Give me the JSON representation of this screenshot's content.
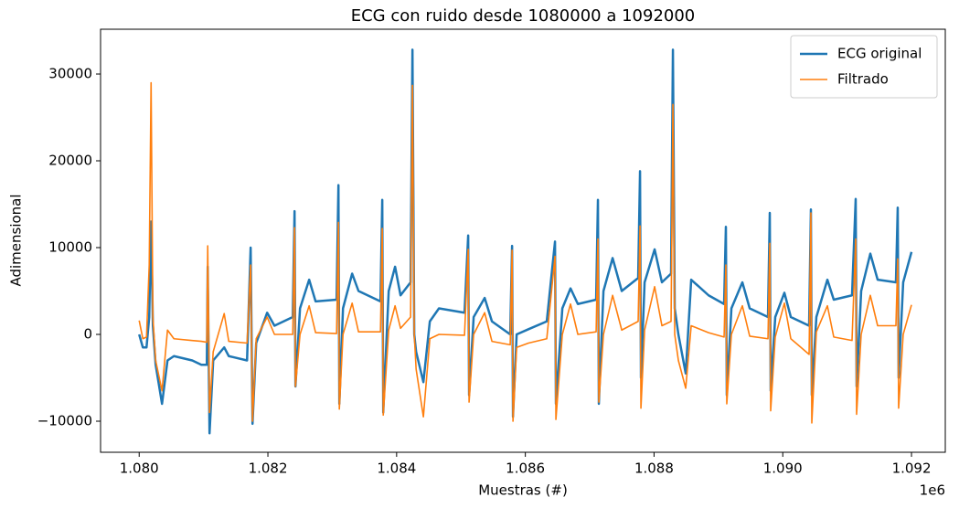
{
  "chart_data": {
    "type": "line",
    "title": "ECG con ruido desde 1080000 a 1092000",
    "xlabel": "Muestras (#)",
    "ylabel": "Adimensional",
    "x_offset_label": "1e6",
    "legend": "upper right",
    "grid": false,
    "xlim": [
      1079400,
      1092525
    ],
    "ylim": [
      -13580,
      35160
    ],
    "xticks": [
      {
        "value": 1080000,
        "label": "1.080"
      },
      {
        "value": 1082000,
        "label": "1.082"
      },
      {
        "value": 1084000,
        "label": "1.084"
      },
      {
        "value": 1086000,
        "label": "1.086"
      },
      {
        "value": 1088000,
        "label": "1.088"
      },
      {
        "value": 1090000,
        "label": "1.090"
      },
      {
        "value": 1092000,
        "label": "1.092"
      }
    ],
    "yticks": [
      {
        "value": -10000,
        "label": "−10000"
      },
      0,
      10000,
      20000,
      30000
    ],
    "x": [
      1080000,
      1080057,
      1080114,
      1080156,
      1080185,
      1080213,
      1080256,
      1080355,
      1080440,
      1080540,
      1080824,
      1080966,
      1081051,
      1081065,
      1081093,
      1081150,
      1081321,
      1081392,
      1081676,
      1081732,
      1081761,
      1081818,
      1081988,
      1082102,
      1082386,
      1082414,
      1082428,
      1082499,
      1082641,
      1082741,
      1083067,
      1083096,
      1083110,
      1083167,
      1083309,
      1083408,
      1083749,
      1083777,
      1083792,
      1083877,
      1083976,
      1084061,
      1084217,
      1084246,
      1084274,
      1084303,
      1084416,
      1084516,
      1084658,
      1085055,
      1085112,
      1085126,
      1085197,
      1085368,
      1085481,
      1085765,
      1085794,
      1085808,
      1085865,
      1086049,
      1086333,
      1086461,
      1086475,
      1086575,
      1086702,
      1086816,
      1087100,
      1087128,
      1087142,
      1087214,
      1087356,
      1087498,
      1087753,
      1087782,
      1087796,
      1087853,
      1088009,
      1088122,
      1088264,
      1088293,
      1088321,
      1088378,
      1088492,
      1088577,
      1088847,
      1089088,
      1089116,
      1089130,
      1089202,
      1089372,
      1089486,
      1089770,
      1089798,
      1089812,
      1089883,
      1090025,
      1090125,
      1090409,
      1090437,
      1090451,
      1090522,
      1090693,
      1090792,
      1091076,
      1091133,
      1091147,
      1091218,
      1091360,
      1091474,
      1091758,
      1091786,
      1091800,
      1091871,
      1092000
    ],
    "series": [
      {
        "name": "ECG original",
        "color": "#1f77b4",
        "values": [
          0,
          -1500,
          -1500,
          2000,
          13000,
          1000,
          -3500,
          -8000,
          -3000,
          -2500,
          -3000,
          -3500,
          -3500,
          7800,
          -11400,
          -3000,
          -1500,
          -2500,
          -3000,
          10000,
          -10300,
          -1000,
          2500,
          1000,
          2000,
          14200,
          -6000,
          3000,
          6300,
          3800,
          4000,
          17200,
          -8000,
          3000,
          7000,
          5000,
          3800,
          15500,
          -9000,
          5000,
          7800,
          4500,
          6000,
          32800,
          0,
          -2000,
          -5500,
          1500,
          3000,
          2500,
          11400,
          -7000,
          2000,
          4200,
          1500,
          0,
          10200,
          -9500,
          0,
          600,
          1500,
          10700,
          -8000,
          3000,
          5300,
          3500,
          4000,
          15500,
          -8000,
          5000,
          8800,
          5000,
          6500,
          18800,
          -5000,
          6000,
          9800,
          6000,
          7000,
          32800,
          3000,
          0,
          -4500,
          6300,
          4500,
          3500,
          12400,
          -7000,
          3000,
          6000,
          3000,
          2000,
          14000,
          -6500,
          2000,
          4800,
          2000,
          1000,
          14400,
          -7000,
          2000,
          6300,
          4000,
          4500,
          15600,
          -6000,
          5000,
          9300,
          6300,
          6000,
          14600,
          -5000,
          6000,
          9500
        ]
      },
      {
        "name": "Filtrado",
        "color": "#ff7f0e",
        "values": [
          1600,
          -500,
          -300,
          8000,
          29000,
          2000,
          -3000,
          -6500,
          500,
          -500,
          -700,
          -800,
          -900,
          10200,
          -9000,
          -2000,
          2400,
          -800,
          -1000,
          8000,
          -10000,
          -500,
          2000,
          0,
          0,
          12300,
          -6000,
          0,
          3300,
          200,
          100,
          12900,
          -8600,
          0,
          3600,
          300,
          300,
          12200,
          -9300,
          500,
          3300,
          700,
          2000,
          28700,
          0,
          -4000,
          -9500,
          -500,
          0,
          -100,
          9800,
          -7800,
          0,
          2500,
          -800,
          -1200,
          9700,
          -10000,
          -1500,
          -1000,
          -500,
          9000,
          -9800,
          0,
          3500,
          0,
          300,
          11000,
          -7800,
          0,
          4500,
          500,
          1500,
          12500,
          -8500,
          500,
          5500,
          1000,
          1500,
          26500,
          0,
          -3000,
          -6200,
          1000,
          200,
          -300,
          8000,
          -8000,
          0,
          3300,
          -200,
          -500,
          10500,
          -8800,
          -300,
          3600,
          -500,
          -2300,
          14000,
          -10200,
          300,
          3300,
          -300,
          -700,
          11000,
          -9200,
          0,
          4500,
          1000,
          1000,
          8700,
          -8500,
          0,
          3400
        ]
      }
    ]
  }
}
